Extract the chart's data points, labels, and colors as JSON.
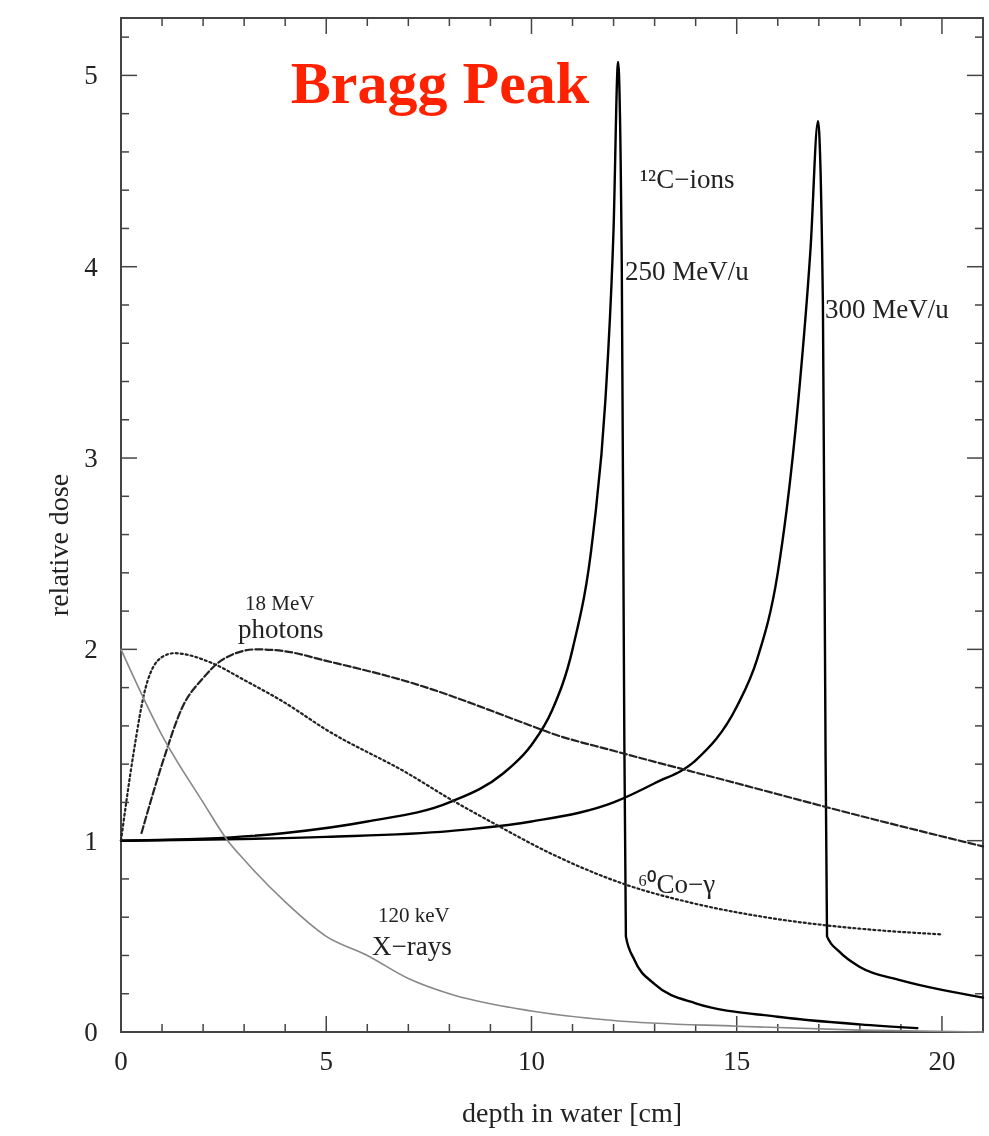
{
  "chart_data": {
    "type": "line",
    "title": "Bragg Peak",
    "xlabel": "depth in water [cm]",
    "ylabel": "relative dose",
    "xlim": [
      0,
      21
    ],
    "ylim": [
      0,
      5.3
    ],
    "xticks": [
      0,
      {
        "value": 1,
        "label": null
      },
      {
        "value": 2,
        "label": null
      },
      {
        "value": 3,
        "label": null
      },
      {
        "value": 4,
        "label": null
      },
      5,
      {
        "value": 6,
        "label": null
      },
      {
        "value": 7,
        "label": null
      },
      {
        "value": 8,
        "label": null
      },
      {
        "value": 9,
        "label": null
      },
      10,
      {
        "value": 11,
        "label": null
      },
      {
        "value": 12,
        "label": null
      },
      {
        "value": 13,
        "label": null
      },
      {
        "value": 14,
        "label": null
      },
      15,
      {
        "value": 16,
        "label": null
      },
      {
        "value": 17,
        "label": null
      },
      {
        "value": 18,
        "label": null
      },
      {
        "value": 19,
        "label": null
      },
      20,
      {
        "value": 21,
        "label": null
      }
    ],
    "yticks": [
      0,
      {
        "value": 0.2,
        "label": null
      },
      {
        "value": 0.4,
        "label": null
      },
      {
        "value": 0.6,
        "label": null
      },
      {
        "value": 0.8,
        "label": null
      },
      1,
      {
        "value": 1.2,
        "label": null
      },
      {
        "value": 1.4,
        "label": null
      },
      {
        "value": 1.6,
        "label": null
      },
      {
        "value": 1.8,
        "label": null
      },
      2,
      {
        "value": 2.2,
        "label": null
      },
      {
        "value": 2.4,
        "label": null
      },
      {
        "value": 2.6,
        "label": null
      },
      {
        "value": 2.8,
        "label": null
      },
      3,
      {
        "value": 3.2,
        "label": null
      },
      {
        "value": 3.4,
        "label": null
      },
      {
        "value": 3.6,
        "label": null
      },
      {
        "value": 3.8,
        "label": null
      },
      4,
      {
        "value": 4.2,
        "label": null
      },
      {
        "value": 4.4,
        "label": null
      },
      {
        "value": 4.6,
        "label": null
      },
      {
        "value": 4.8,
        "label": null
      },
      5,
      {
        "value": 5.2,
        "label": null
      }
    ],
    "grid": false,
    "marker": "none",
    "series": [
      {
        "color": "#000000",
        "line_style": "solid",
        "x": [
          0,
          2,
          4,
          6,
          8,
          9.3,
          10,
          10.5,
          11,
          11.5,
          11.8,
          12,
          12.11,
          12.2,
          12.25,
          12.3,
          12.5,
          13,
          14,
          16,
          18,
          19.4
        ],
        "values": [
          1,
          1.01,
          1.04,
          1.1,
          1.2,
          1.35,
          1.5,
          1.68,
          2,
          2.6,
          3.3,
          4.2,
          5.07,
          4,
          2,
          0.5,
          0.38,
          0.25,
          0.15,
          0.08,
          0.04,
          0.02
        ]
      },
      {
        "color": "#000000",
        "line_style": "solid",
        "x": [
          0,
          5,
          8,
          10,
          12,
          13,
          14,
          15,
          15.5,
          16,
          16.5,
          16.8,
          16.98,
          17.1,
          17.15,
          17.2,
          17.5,
          18,
          19,
          20,
          21
        ],
        "values": [
          1,
          1.02,
          1.05,
          1.1,
          1.2,
          1.3,
          1.42,
          1.7,
          1.95,
          2.4,
          3.3,
          4.1,
          4.76,
          3.8,
          2,
          0.5,
          0.42,
          0.34,
          0.27,
          0.22,
          0.18
        ]
      },
      {
        "color": "#222222",
        "line_style": "dashed",
        "x": [
          0.5,
          1,
          1.5,
          2,
          2.5,
          3.3,
          4,
          5,
          7,
          10,
          10.5,
          12,
          15,
          18,
          21
        ],
        "values": [
          1.04,
          1.4,
          1.7,
          1.85,
          1.95,
          2,
          1.99,
          1.94,
          1.83,
          1.6,
          1.56,
          1.47,
          1.3,
          1.13,
          0.97
        ]
      },
      {
        "color": "#222222",
        "line_style": "dotted",
        "x": [
          0,
          0.3,
          0.6,
          1,
          1.3,
          2.2,
          3,
          4,
          5,
          7,
          8,
          9,
          10.5,
          12.3,
          14,
          16,
          18,
          20
        ],
        "values": [
          1,
          1.45,
          1.8,
          1.96,
          1.98,
          1.93,
          1.84,
          1.72,
          1.58,
          1.35,
          1.22,
          1.1,
          0.93,
          0.77,
          0.67,
          0.59,
          0.54,
          0.51
        ]
      },
      {
        "color": "#888888",
        "line_style": "solid",
        "x": [
          0,
          1,
          2,
          2.6,
          3,
          4,
          5,
          6,
          7,
          8,
          10,
          12,
          15,
          18,
          21
        ],
        "values": [
          2,
          1.55,
          1.2,
          1,
          0.9,
          0.68,
          0.5,
          0.4,
          0.28,
          0.2,
          0.11,
          0.06,
          0.03,
          0.01,
          0
        ]
      }
    ],
    "annotations": [
      "¹²C−ions",
      "250 MeV/u",
      "300 MeV/u",
      "18 MeV",
      "photons",
      "⁶⁰Co−γ",
      "120 keV",
      "X−rays"
    ]
  }
}
